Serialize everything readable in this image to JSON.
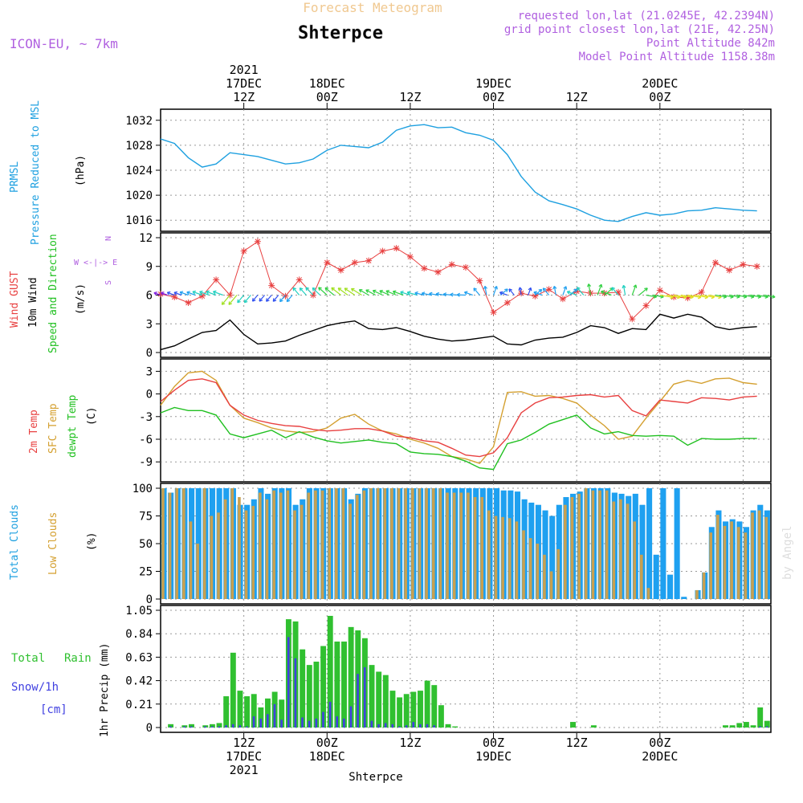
{
  "header": {
    "title": "Forecast Meteogram",
    "location": "Shterpce",
    "model": "ICON-EU, ~ 7km",
    "info_lines": [
      "requested lon,lat (21.0245E, 42.2394N)",
      "grid point closest lon,lat (21E, 42.25N)",
      "Point Altitude 842m",
      "Model Point Altitude 1158.38m"
    ],
    "credit": "by Angel",
    "bottom_label": "Shterpce"
  },
  "time_axis": {
    "start_hour_offset": 0,
    "top_labels": [
      {
        "lines": [
          "2021",
          "17DEC",
          "12Z"
        ],
        "hour": 12
      },
      {
        "lines": [
          "18DEC",
          "00Z"
        ],
        "hour": 24
      },
      {
        "lines": [
          "12Z"
        ],
        "hour": 36
      },
      {
        "lines": [
          "19DEC",
          "00Z"
        ],
        "hour": 48
      },
      {
        "lines": [
          "12Z"
        ],
        "hour": 60
      },
      {
        "lines": [
          "20DEC",
          "00Z"
        ],
        "hour": 72
      }
    ],
    "bottom_labels": [
      {
        "lines": [
          "12Z",
          "17DEC",
          "2021"
        ],
        "hour": 12
      },
      {
        "lines": [
          "00Z",
          "18DEC"
        ],
        "hour": 24
      },
      {
        "lines": [
          "12Z"
        ],
        "hour": 36
      },
      {
        "lines": [
          "00Z",
          "19DEC"
        ],
        "hour": 48
      },
      {
        "lines": [
          "12Z"
        ],
        "hour": 60
      },
      {
        "lines": [
          "00Z",
          "20DEC"
        ],
        "hour": 72
      }
    ]
  },
  "panels": {
    "pressure": {
      "labels": [
        "PRMSL",
        "Pressure Reduced to MSL"
      ],
      "unit": "(hPa)",
      "ticks": [
        "1032",
        "1028",
        "1024",
        "1020",
        "1016"
      ]
    },
    "wind": {
      "labels": [
        "Wind GUST",
        "10m Wind",
        "Speed and Direction"
      ],
      "unit": "(m/s)",
      "ticks": [
        "12",
        "9",
        "6",
        "3",
        "0"
      ],
      "compass": [
        "N",
        "W <-|-> E",
        "S"
      ]
    },
    "temp": {
      "labels": [
        "2m Temp",
        "SFC Temp",
        "dewpt Temp"
      ],
      "unit": "(C)",
      "ticks": [
        "3",
        "0",
        "-3",
        "-6",
        "-9"
      ]
    },
    "clouds": {
      "labels": [
        "Total Clouds",
        "Low Clouds"
      ],
      "unit": "(%)",
      "ticks": [
        "100",
        "75",
        "50",
        "25",
        "0"
      ]
    },
    "precip": {
      "labels": [
        "Total",
        "Rain",
        "Snow/1h",
        "[cm]"
      ],
      "unit": "1hr Precip (mm)",
      "ticks": [
        "1.05",
        "0.84",
        "0.63",
        "0.42",
        "0.21",
        "0"
      ]
    }
  },
  "colors": {
    "pressure": "#1ea0e0",
    "gust": "#e84040",
    "wind10": "#000000",
    "t2m": "#e84040",
    "sfc": "#d4a030",
    "dewpt": "#20c020",
    "total_clouds": "#1ea0f0",
    "low_clouds": "#c8a050",
    "rain": "#30c030",
    "snow": "#4040e0",
    "info": "#b060e0",
    "title": "#f0c890"
  },
  "chart_data": [
    {
      "type": "line",
      "name": "prmsl",
      "ylim": [
        1015,
        1033
      ],
      "x_hours": [
        0,
        2,
        4,
        6,
        8,
        10,
        12,
        14,
        16,
        18,
        20,
        22,
        24,
        26,
        28,
        30,
        32,
        34,
        36,
        38,
        40,
        42,
        44,
        46,
        48,
        50,
        52,
        54,
        56,
        58,
        60,
        62,
        64,
        66,
        68,
        70,
        72,
        74,
        76,
        78,
        80,
        82,
        84,
        86
      ],
      "series": [
        {
          "values": [
            1029,
            1028.3,
            1026,
            1024.5,
            1025,
            1026.8,
            1026.5,
            1026.2,
            1025.6,
            1025.0,
            1025.2,
            1025.8,
            1027.2,
            1028,
            1027.8,
            1027.6,
            1028.5,
            1030.4,
            1031.1,
            1031.3,
            1030.8,
            1030.9,
            1030.0,
            1029.6,
            1028.8,
            1026.5,
            1023.0,
            1020.5,
            1019.1,
            1018.5,
            1017.8,
            1016.8,
            1016.0,
            1015.8,
            1016.6,
            1017.2,
            1016.8,
            1017.0,
            1017.5,
            1017.6,
            1018.0,
            1017.8,
            1017.6,
            1017.5
          ]
        }
      ]
    },
    {
      "type": "line",
      "name": "wind",
      "ylim": [
        0,
        12
      ],
      "x_hours": [
        0,
        2,
        4,
        6,
        8,
        10,
        12,
        14,
        16,
        18,
        20,
        22,
        24,
        26,
        28,
        30,
        32,
        34,
        36,
        38,
        40,
        42,
        44,
        46,
        48,
        50,
        52,
        54,
        56,
        58,
        60,
        62,
        64,
        66,
        68,
        70,
        72,
        74,
        76,
        78,
        80,
        82,
        84,
        86
      ],
      "series": [
        {
          "name": "Wind GUST",
          "values": [
            6.1,
            5.8,
            5.2,
            5.9,
            7.6,
            6.0,
            10.6,
            11.6,
            7.0,
            5.9,
            7.6,
            6.0,
            9.4,
            8.6,
            9.4,
            9.6,
            10.6,
            10.9,
            10.0,
            8.8,
            8.4,
            9.2,
            8.9,
            7.5,
            4.2,
            5.2,
            6.2,
            5.9,
            6.6,
            5.6,
            6.4,
            6.2,
            6.2,
            6.3,
            3.5,
            4.9,
            6.5,
            5.8,
            5.7,
            6.3,
            9.4,
            8.6,
            9.2,
            9.0
          ]
        },
        {
          "name": "10m Wind",
          "values": [
            0.3,
            0.7,
            1.4,
            2.1,
            2.3,
            3.4,
            1.9,
            0.9,
            1.0,
            1.2,
            1.8,
            2.3,
            2.8,
            3.1,
            3.3,
            2.5,
            2.4,
            2.6,
            2.2,
            1.7,
            1.4,
            1.2,
            1.3,
            1.5,
            1.7,
            0.9,
            0.8,
            1.3,
            1.5,
            1.6,
            2.1,
            2.8,
            2.6,
            2.0,
            2.5,
            2.4,
            4.0,
            3.6,
            4.0,
            3.7,
            2.7,
            2.4,
            2.6,
            2.7
          ]
        }
      ]
    },
    {
      "type": "line",
      "name": "temperature",
      "ylim": [
        -11,
        4
      ],
      "x_hours": [
        0,
        2,
        4,
        6,
        8,
        10,
        12,
        14,
        16,
        18,
        20,
        22,
        24,
        26,
        28,
        30,
        32,
        34,
        36,
        38,
        40,
        42,
        44,
        46,
        48,
        50,
        52,
        54,
        56,
        58,
        60,
        62,
        64,
        66,
        68,
        70,
        72,
        74,
        76,
        78,
        80,
        82,
        84,
        86
      ],
      "series": [
        {
          "name": "2m Temp",
          "values": [
            -1.0,
            0.5,
            1.8,
            2.0,
            1.5,
            -1.5,
            -2.8,
            -3.5,
            -3.9,
            -4.2,
            -4.3,
            -4.7,
            -4.9,
            -4.8,
            -4.6,
            -4.6,
            -4.9,
            -5.6,
            -5.8,
            -6.2,
            -6.4,
            -7.2,
            -8.1,
            -8.3,
            -7.8,
            -5.8,
            -2.5,
            -1.2,
            -0.5,
            -0.4,
            -0.2,
            -0.1,
            -0.4,
            -0.2,
            -2.2,
            -2.9,
            -0.8,
            -1.0,
            -1.2,
            -0.5,
            -0.6,
            -0.8,
            -0.4,
            -0.3
          ]
        },
        {
          "name": "SFC Temp",
          "values": [
            -1.5,
            1.0,
            2.8,
            3.0,
            1.8,
            -1.5,
            -3.2,
            -3.8,
            -4.5,
            -4.9,
            -5.1,
            -5.0,
            -4.5,
            -3.2,
            -2.7,
            -4.0,
            -4.9,
            -5.3,
            -6.0,
            -6.5,
            -7.2,
            -8.3,
            -8.6,
            -9.2,
            -7.0,
            0.2,
            0.3,
            -0.3,
            -0.2,
            -0.6,
            -1.2,
            -2.8,
            -4.2,
            -6.0,
            -5.6,
            -3.2,
            -1.0,
            1.3,
            1.8,
            1.4,
            2.0,
            2.1,
            1.5,
            1.3
          ]
        },
        {
          "name": "dewpt Temp",
          "values": [
            -2.5,
            -1.8,
            -2.2,
            -2.2,
            -2.8,
            -5.3,
            -5.8,
            -5.3,
            -4.8,
            -5.8,
            -5.0,
            -5.7,
            -6.2,
            -6.5,
            -6.3,
            -6.1,
            -6.4,
            -6.6,
            -7.7,
            -7.9,
            -8.0,
            -8.3,
            -8.9,
            -9.8,
            -10.0,
            -6.6,
            -6.1,
            -5.1,
            -4.0,
            -3.4,
            -2.8,
            -4.5,
            -5.3,
            -5.0,
            -5.5,
            -5.6,
            -5.5,
            -5.6,
            -6.8,
            -5.9,
            -6.0,
            -6.0,
            -5.9,
            -5.9
          ]
        }
      ]
    },
    {
      "type": "bar",
      "name": "clouds",
      "ylim": [
        0,
        100
      ],
      "x_hours": [
        0,
        1,
        2,
        3,
        4,
        5,
        6,
        7,
        8,
        9,
        10,
        11,
        12,
        13,
        14,
        15,
        16,
        17,
        18,
        19,
        20,
        21,
        22,
        23,
        24,
        25,
        26,
        27,
        28,
        29,
        30,
        31,
        32,
        33,
        34,
        35,
        36,
        37,
        38,
        39,
        40,
        41,
        42,
        43,
        44,
        45,
        46,
        47,
        48,
        49,
        50,
        51,
        52,
        53,
        54,
        55,
        56,
        57,
        58,
        59,
        60,
        61,
        62,
        63,
        64,
        65,
        66,
        67,
        68,
        69,
        70,
        71,
        72,
        73,
        74,
        75,
        76,
        77,
        78,
        79,
        80,
        81,
        82,
        83,
        84,
        85,
        86,
        87
      ],
      "series": [
        {
          "name": "Total Clouds",
          "values": [
            100,
            96,
            100,
            100,
            100,
            100,
            100,
            100,
            100,
            100,
            100,
            85,
            85,
            90,
            100,
            95,
            100,
            100,
            100,
            85,
            90,
            100,
            100,
            100,
            100,
            100,
            100,
            90,
            95,
            100,
            100,
            100,
            100,
            100,
            100,
            100,
            100,
            100,
            100,
            100,
            100,
            100,
            100,
            100,
            100,
            100,
            100,
            100,
            100,
            98,
            98,
            97,
            90,
            87,
            85,
            80,
            75,
            85,
            92,
            95,
            97,
            100,
            100,
            100,
            100,
            96,
            95,
            93,
            95,
            85,
            100,
            40,
            100,
            22,
            100,
            2,
            0,
            8,
            24,
            65,
            80,
            70,
            72,
            70,
            65,
            80,
            85,
            80
          ]
        },
        {
          "name": "Low Clouds",
          "values": [
            100,
            96,
            100,
            100,
            70,
            50,
            100,
            75,
            78,
            90,
            100,
            92,
            80,
            84,
            96,
            90,
            98,
            96,
            98,
            80,
            85,
            96,
            98,
            98,
            100,
            100,
            100,
            86,
            94,
            98,
            100,
            100,
            100,
            100,
            100,
            100,
            100,
            100,
            100,
            100,
            100,
            96,
            96,
            96,
            96,
            92,
            92,
            80,
            75,
            74,
            73,
            70,
            62,
            55,
            50,
            40,
            25,
            45,
            85,
            92,
            95,
            100,
            98,
            98,
            98,
            88,
            90,
            86,
            70,
            40,
            10,
            0,
            0,
            0,
            0,
            0,
            0,
            8,
            24,
            60,
            76,
            66,
            70,
            65,
            60,
            78,
            80,
            74
          ]
        }
      ]
    },
    {
      "type": "bar",
      "name": "precipitation",
      "ylim": [
        0,
        1.05
      ],
      "x_hours": [
        0,
        1,
        2,
        3,
        4,
        5,
        6,
        7,
        8,
        9,
        10,
        11,
        12,
        13,
        14,
        15,
        16,
        17,
        18,
        19,
        20,
        21,
        22,
        23,
        24,
        25,
        26,
        27,
        28,
        29,
        30,
        31,
        32,
        33,
        34,
        35,
        36,
        37,
        38,
        39,
        40,
        41,
        42,
        43,
        44,
        45,
        46,
        47,
        48,
        49,
        50,
        51,
        52,
        53,
        54,
        55,
        56,
        57,
        58,
        59,
        60,
        61,
        62,
        63,
        64,
        65,
        66,
        67,
        68,
        69,
        70,
        71,
        72,
        73,
        74,
        75,
        76,
        77,
        78,
        79,
        80,
        81,
        82,
        83,
        84,
        85,
        86,
        87
      ],
      "series": [
        {
          "name": "Total Rain",
          "values": [
            0,
            0.03,
            0,
            0.02,
            0.03,
            0,
            0.02,
            0.03,
            0.04,
            0.28,
            0.67,
            0.33,
            0.28,
            0.3,
            0.18,
            0.26,
            0.32,
            0.25,
            0.97,
            0.95,
            0.7,
            0.56,
            0.59,
            0.73,
            1.0,
            0.77,
            0.77,
            0.9,
            0.87,
            0.8,
            0.56,
            0.5,
            0.47,
            0.33,
            0.27,
            0.3,
            0.32,
            0.33,
            0.42,
            0.38,
            0.2,
            0.03,
            0.01,
            0,
            0,
            0,
            0,
            0,
            0,
            0,
            0,
            0,
            0,
            0,
            0,
            0,
            0,
            0,
            0,
            0.05,
            0,
            0,
            0.02,
            0,
            0,
            0,
            0,
            0,
            0,
            0,
            0,
            0,
            0,
            0,
            0,
            0,
            0,
            0,
            0,
            0,
            0,
            0.02,
            0.02,
            0.04,
            0.05,
            0.02,
            0.18,
            0.06
          ]
        },
        {
          "name": "Snow",
          "values": [
            0,
            0.01,
            0,
            0.01,
            0.01,
            0,
            0.01,
            0.01,
            0.01,
            0.02,
            0.03,
            0.02,
            0.01,
            0.1,
            0.08,
            0.12,
            0.21,
            0.07,
            0.81,
            0.62,
            0.09,
            0.06,
            0.08,
            0.14,
            0.23,
            0.1,
            0.08,
            0.19,
            0.48,
            0.54,
            0.06,
            0.03,
            0.04,
            0.03,
            0.01,
            0.02,
            0.05,
            0.03,
            0.03,
            0.02,
            0,
            0,
            0,
            0,
            0,
            0,
            0,
            0,
            0,
            0,
            0,
            0,
            0,
            0,
            0,
            0,
            0,
            0,
            0,
            0,
            0,
            0,
            0,
            0,
            0,
            0,
            0,
            0,
            0,
            0,
            0,
            0,
            0,
            0,
            0,
            0,
            0,
            0,
            0,
            0,
            0,
            0,
            0,
            0,
            0,
            0,
            0.01,
            0.01
          ]
        }
      ]
    }
  ]
}
